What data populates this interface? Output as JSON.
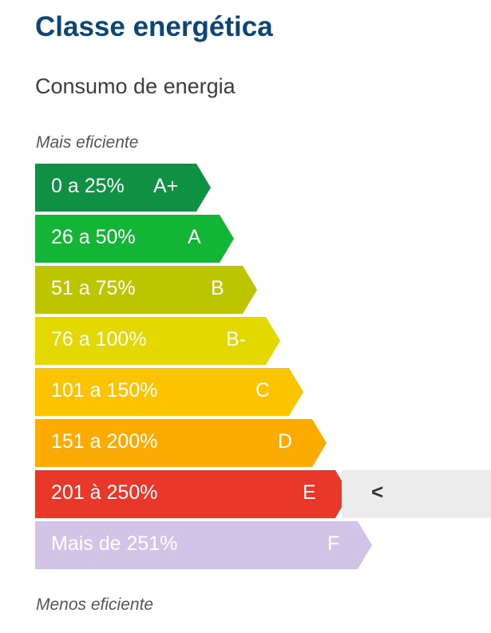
{
  "header": {
    "title": "Classe energética",
    "subtitle": "Consumo de energia"
  },
  "scale": {
    "top_caption": "Mais eficiente",
    "bottom_caption": "Menos eficiente",
    "current_marker": "<",
    "classes": [
      {
        "range": "0 a 25%",
        "grade": "A+",
        "color": "#0f9143",
        "current": false
      },
      {
        "range": "26 a 50%",
        "grade": "A",
        "color": "#13b537",
        "current": false
      },
      {
        "range": "51 a 75%",
        "grade": "B",
        "color": "#bcc500",
        "current": false
      },
      {
        "range": "76 a 100%",
        "grade": "B-",
        "color": "#e3d800",
        "current": false
      },
      {
        "range": "101 a 150%",
        "grade": "C",
        "color": "#fcc400",
        "current": false
      },
      {
        "range": "151 a 200%",
        "grade": "D",
        "color": "#fdab00",
        "current": false
      },
      {
        "range": "201 à 250%",
        "grade": "E",
        "color": "#e93829",
        "current": true
      },
      {
        "range": "Mais de 251%",
        "grade": "F",
        "color": "#d2c4e6",
        "current": false
      }
    ]
  }
}
